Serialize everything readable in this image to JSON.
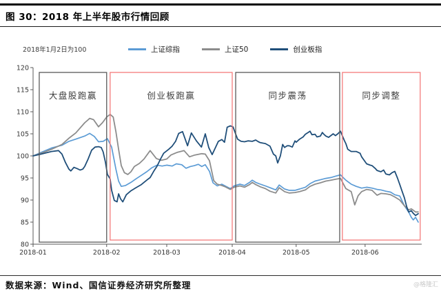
{
  "header": {
    "title": "图 30：2018 年上半年股市行情回顾"
  },
  "footer": {
    "source": "数据来源：Wind、国信证券经济研究所整理",
    "watermark": "@格隆汇"
  },
  "chart_data": {
    "type": "line",
    "title": "2018 年上半年股市行情回顾",
    "note": "2018年1月2日为100",
    "x_axis": {
      "ticks": [
        "2018-01",
        "2018-02",
        "2018-03",
        "2018-04",
        "2018-05",
        "2018-06"
      ],
      "tick_t": [
        0,
        19.1,
        34.7,
        51.7,
        68.3,
        86.2
      ]
    },
    "y_axis": {
      "min": 80,
      "max": 120,
      "step": 5,
      "ticks": [
        120,
        115,
        110,
        105,
        100,
        95,
        90,
        85,
        80
      ]
    },
    "legend_position": "top",
    "grid": false,
    "colors": {
      "red_box": "#F47B7B",
      "dark_box": "#595959"
    },
    "annotations": [
      {
        "label": "大盘股跑赢",
        "t0": 1.6,
        "t1": 19.1,
        "style": "dark"
      },
      {
        "label": "创业板跑赢",
        "t0": 20.0,
        "t1": 51.7,
        "style": "red"
      },
      {
        "label": "同步震荡",
        "t0": 52.6,
        "t1": 79.6,
        "style": "dark"
      },
      {
        "label": "同步调整",
        "t0": 80.3,
        "t1": 100.5,
        "style": "red"
      }
    ],
    "series": [
      {
        "name": "上证综指",
        "color": "#5B9BD5",
        "width": 1.7,
        "points": [
          [
            0,
            100
          ],
          [
            2.1,
            100.8
          ],
          [
            4.8,
            101.8
          ],
          [
            7.5,
            102.4
          ],
          [
            9.3,
            103.3
          ],
          [
            11.1,
            103.8
          ],
          [
            13.4,
            104.5
          ],
          [
            14.7,
            105.1
          ],
          [
            15.9,
            104.4
          ],
          [
            17,
            103.2
          ],
          [
            18.2,
            103.3
          ],
          [
            19.3,
            103.9
          ],
          [
            20.4,
            102
          ],
          [
            21.5,
            97
          ],
          [
            22.2,
            94.3
          ],
          [
            22.9,
            93.1
          ],
          [
            24,
            93.3
          ],
          [
            25.4,
            94
          ],
          [
            26.7,
            94.8
          ],
          [
            28.1,
            95.6
          ],
          [
            29.5,
            96.4
          ],
          [
            30.8,
            97.3
          ],
          [
            32.2,
            97.9
          ],
          [
            33.5,
            97.7
          ],
          [
            34.7,
            97.9
          ],
          [
            36.1,
            97.7
          ],
          [
            37.2,
            98.2
          ],
          [
            38.6,
            98
          ],
          [
            39.7,
            97.2
          ],
          [
            40.8,
            97.6
          ],
          [
            41.9,
            97.8
          ],
          [
            42.9,
            98.1
          ],
          [
            43.8,
            97.6
          ],
          [
            44.7,
            98
          ],
          [
            45.8,
            96.5
          ],
          [
            46.7,
            93.9
          ],
          [
            47.8,
            93.2
          ],
          [
            49,
            93.6
          ],
          [
            50.1,
            93.1
          ],
          [
            51.2,
            92.6
          ],
          [
            52.2,
            93.2
          ],
          [
            53.7,
            93.6
          ],
          [
            54.9,
            93.3
          ],
          [
            56.2,
            94
          ],
          [
            56.9,
            94.5
          ],
          [
            57.8,
            94
          ],
          [
            59,
            93.6
          ],
          [
            60.3,
            93.2
          ],
          [
            61.5,
            92.8
          ],
          [
            63,
            92.3
          ],
          [
            63.9,
            93.4
          ],
          [
            65.3,
            92.5
          ],
          [
            66.5,
            92.2
          ],
          [
            68,
            92.2
          ],
          [
            69.2,
            92.5
          ],
          [
            70.7,
            92.9
          ],
          [
            71.9,
            93.7
          ],
          [
            73.2,
            94.3
          ],
          [
            74.6,
            94.6
          ],
          [
            76,
            94.9
          ],
          [
            77.3,
            95.1
          ],
          [
            78.5,
            95.4
          ],
          [
            79.8,
            95.7
          ],
          [
            81.2,
            94.5
          ],
          [
            82.6,
            93.6
          ],
          [
            83.9,
            93.1
          ],
          [
            85.3,
            92.7
          ],
          [
            86.6,
            92.9
          ],
          [
            88,
            92.7
          ],
          [
            89.3,
            92.4
          ],
          [
            90.3,
            92.3
          ],
          [
            91.6,
            92
          ],
          [
            92.8,
            91.8
          ],
          [
            93.9,
            91.2
          ],
          [
            95.2,
            90.9
          ],
          [
            96.4,
            88.7
          ],
          [
            97.5,
            87.3
          ],
          [
            98.2,
            86.1
          ],
          [
            98.7,
            85.5
          ],
          [
            99.3,
            86.1
          ],
          [
            100,
            85
          ]
        ]
      },
      {
        "name": "上证50",
        "color": "#8C8C8C",
        "width": 1.8,
        "points": [
          [
            0,
            100
          ],
          [
            2.1,
            100.6
          ],
          [
            4.8,
            101.5
          ],
          [
            7.5,
            102.6
          ],
          [
            9.3,
            104
          ],
          [
            11.1,
            105.2
          ],
          [
            13.4,
            107.5
          ],
          [
            14.7,
            108.5
          ],
          [
            15.7,
            108.2
          ],
          [
            17,
            106.6
          ],
          [
            18,
            107.5
          ],
          [
            19.1,
            108.8
          ],
          [
            20,
            109.4
          ],
          [
            20.8,
            108.8
          ],
          [
            21.5,
            105.5
          ],
          [
            22.2,
            101.5
          ],
          [
            22.9,
            97.8
          ],
          [
            23.7,
            96.2
          ],
          [
            24.6,
            95.8
          ],
          [
            25.4,
            96.4
          ],
          [
            26.3,
            97.6
          ],
          [
            27.6,
            98.3
          ],
          [
            28.8,
            99.3
          ],
          [
            30.4,
            101.2
          ],
          [
            32,
            99.4
          ],
          [
            33.3,
            99
          ],
          [
            34.7,
            99.3
          ],
          [
            35.8,
            100.2
          ],
          [
            37.4,
            100.8
          ],
          [
            38.3,
            101
          ],
          [
            39.2,
            101.2
          ],
          [
            40.6,
            99.8
          ],
          [
            42,
            100.2
          ],
          [
            43.8,
            100.5
          ],
          [
            44.7,
            100.4
          ],
          [
            45.8,
            98.9
          ],
          [
            46.9,
            94.4
          ],
          [
            47.8,
            93.6
          ],
          [
            49,
            93.3
          ],
          [
            49.9,
            93
          ],
          [
            51.2,
            92.4
          ],
          [
            52.2,
            92.9
          ],
          [
            53.7,
            93.2
          ],
          [
            54.9,
            92.9
          ],
          [
            56.2,
            93.5
          ],
          [
            56.9,
            94
          ],
          [
            57.8,
            93.5
          ],
          [
            59,
            93
          ],
          [
            60.3,
            92.6
          ],
          [
            61.5,
            92
          ],
          [
            63,
            91.6
          ],
          [
            63.9,
            92.8
          ],
          [
            65.3,
            91.9
          ],
          [
            66.5,
            91.6
          ],
          [
            68,
            91.7
          ],
          [
            69.2,
            91.9
          ],
          [
            70.7,
            92.3
          ],
          [
            71.9,
            93.1
          ],
          [
            73.2,
            93.6
          ],
          [
            74.6,
            93.9
          ],
          [
            76,
            94.3
          ],
          [
            77.3,
            94.5
          ],
          [
            78.5,
            94.7
          ],
          [
            79.8,
            94.9
          ],
          [
            81.2,
            92.6
          ],
          [
            82.6,
            91.9
          ],
          [
            83.5,
            88.9
          ],
          [
            84.4,
            91
          ],
          [
            85.3,
            91.9
          ],
          [
            86.6,
            92.4
          ],
          [
            88,
            92.2
          ],
          [
            89.3,
            91.1
          ],
          [
            90.3,
            91.5
          ],
          [
            91.6,
            91.4
          ],
          [
            92.8,
            91.2
          ],
          [
            93.9,
            90.7
          ],
          [
            95.2,
            90
          ],
          [
            96.4,
            88.7
          ],
          [
            97.5,
            87.8
          ],
          [
            98.2,
            88
          ],
          [
            98.7,
            87.7
          ],
          [
            99.3,
            87.3
          ],
          [
            100,
            87.3
          ]
        ]
      },
      {
        "name": "创业板指",
        "color": "#1F4E79",
        "width": 1.8,
        "points": [
          [
            0,
            100
          ],
          [
            2.1,
            100.4
          ],
          [
            4.8,
            101
          ],
          [
            6.6,
            101.2
          ],
          [
            7.5,
            100.4
          ],
          [
            8.4,
            98.5
          ],
          [
            9.3,
            97
          ],
          [
            9.8,
            96.6
          ],
          [
            10.6,
            97.4
          ],
          [
            11.5,
            97.1
          ],
          [
            12.2,
            96.8
          ],
          [
            12.9,
            97
          ],
          [
            13.4,
            97.6
          ],
          [
            14.3,
            99.3
          ],
          [
            15.2,
            101.3
          ],
          [
            16.1,
            102
          ],
          [
            17,
            102.1
          ],
          [
            17.7,
            101.9
          ],
          [
            18.2,
            100.9
          ],
          [
            18.8,
            98.5
          ],
          [
            19.3,
            95.8
          ],
          [
            20,
            94.8
          ],
          [
            20.4,
            92.2
          ],
          [
            21.1,
            89.9
          ],
          [
            21.8,
            89.6
          ],
          [
            22.2,
            91.4
          ],
          [
            22.7,
            90.3
          ],
          [
            23.3,
            89.6
          ],
          [
            24.2,
            91.2
          ],
          [
            25.4,
            92.1
          ],
          [
            26.7,
            92.8
          ],
          [
            28.1,
            93.5
          ],
          [
            29.5,
            94.5
          ],
          [
            30.4,
            95.1
          ],
          [
            31.3,
            96.5
          ],
          [
            32.2,
            97.7
          ],
          [
            33.1,
            99.3
          ],
          [
            33.9,
            100.6
          ],
          [
            35.2,
            101.5
          ],
          [
            36.1,
            102.2
          ],
          [
            37,
            103.3
          ],
          [
            37.8,
            105.1
          ],
          [
            38.8,
            105.5
          ],
          [
            40.1,
            102.3
          ],
          [
            41.1,
            105.2
          ],
          [
            42.4,
            103.4
          ],
          [
            43.7,
            102
          ],
          [
            44.7,
            105
          ],
          [
            45.6,
            101.9
          ],
          [
            46.5,
            100.3
          ],
          [
            47.4,
            102
          ],
          [
            48.1,
            103.3
          ],
          [
            49,
            103.7
          ],
          [
            49.7,
            103.1
          ],
          [
            50.4,
            106.5
          ],
          [
            51.2,
            106.8
          ],
          [
            51.9,
            106.6
          ],
          [
            53.1,
            103.8
          ],
          [
            54,
            103.3
          ],
          [
            54.9,
            103.2
          ],
          [
            55.8,
            103.4
          ],
          [
            56.9,
            103.3
          ],
          [
            57.8,
            103.6
          ],
          [
            58.5,
            103.2
          ],
          [
            59,
            103
          ],
          [
            60.3,
            102.8
          ],
          [
            61.5,
            102.2
          ],
          [
            62.4,
            100.4
          ],
          [
            63,
            100
          ],
          [
            63.5,
            98.4
          ],
          [
            64.2,
            100
          ],
          [
            64.8,
            102.6
          ],
          [
            65.3,
            101.9
          ],
          [
            66,
            102.3
          ],
          [
            66.5,
            102.3
          ],
          [
            67.3,
            102
          ],
          [
            68,
            103.4
          ],
          [
            68.3,
            103.1
          ],
          [
            69.2,
            103.8
          ],
          [
            70.1,
            104.3
          ],
          [
            70.7,
            104.9
          ],
          [
            71.4,
            105.3
          ],
          [
            71.9,
            105.6
          ],
          [
            72.4,
            104.8
          ],
          [
            73.2,
            104.9
          ],
          [
            73.7,
            104.3
          ],
          [
            74.6,
            104.5
          ],
          [
            75.1,
            105.3
          ],
          [
            75.5,
            104.9
          ],
          [
            76,
            104.5
          ],
          [
            76.7,
            104.2
          ],
          [
            77.3,
            104.6
          ],
          [
            77.9,
            105
          ],
          [
            78.5,
            104.6
          ],
          [
            79.1,
            105
          ],
          [
            79.8,
            105.6
          ],
          [
            80.8,
            103.5
          ],
          [
            81.2,
            102.8
          ],
          [
            81.7,
            101.5
          ],
          [
            82.6,
            101
          ],
          [
            83.9,
            101
          ],
          [
            84.9,
            100.6
          ],
          [
            85.3,
            99.8
          ],
          [
            86.6,
            98.2
          ],
          [
            87.5,
            97.9
          ],
          [
            88,
            97.8
          ],
          [
            88.9,
            97.1
          ],
          [
            89.3,
            96.7
          ],
          [
            90.3,
            96.4
          ],
          [
            91,
            96.8
          ],
          [
            91.6,
            95.9
          ],
          [
            92.5,
            95.7
          ],
          [
            93.2,
            96.2
          ],
          [
            93.9,
            96.5
          ],
          [
            94.6,
            95
          ],
          [
            95.2,
            93.5
          ],
          [
            95.8,
            92
          ],
          [
            96.4,
            90.5
          ],
          [
            97,
            88.5
          ],
          [
            97.5,
            87.3
          ],
          [
            98.2,
            87.6
          ],
          [
            98.7,
            87
          ],
          [
            99.3,
            86.5
          ],
          [
            100,
            86.9
          ]
        ]
      }
    ]
  }
}
